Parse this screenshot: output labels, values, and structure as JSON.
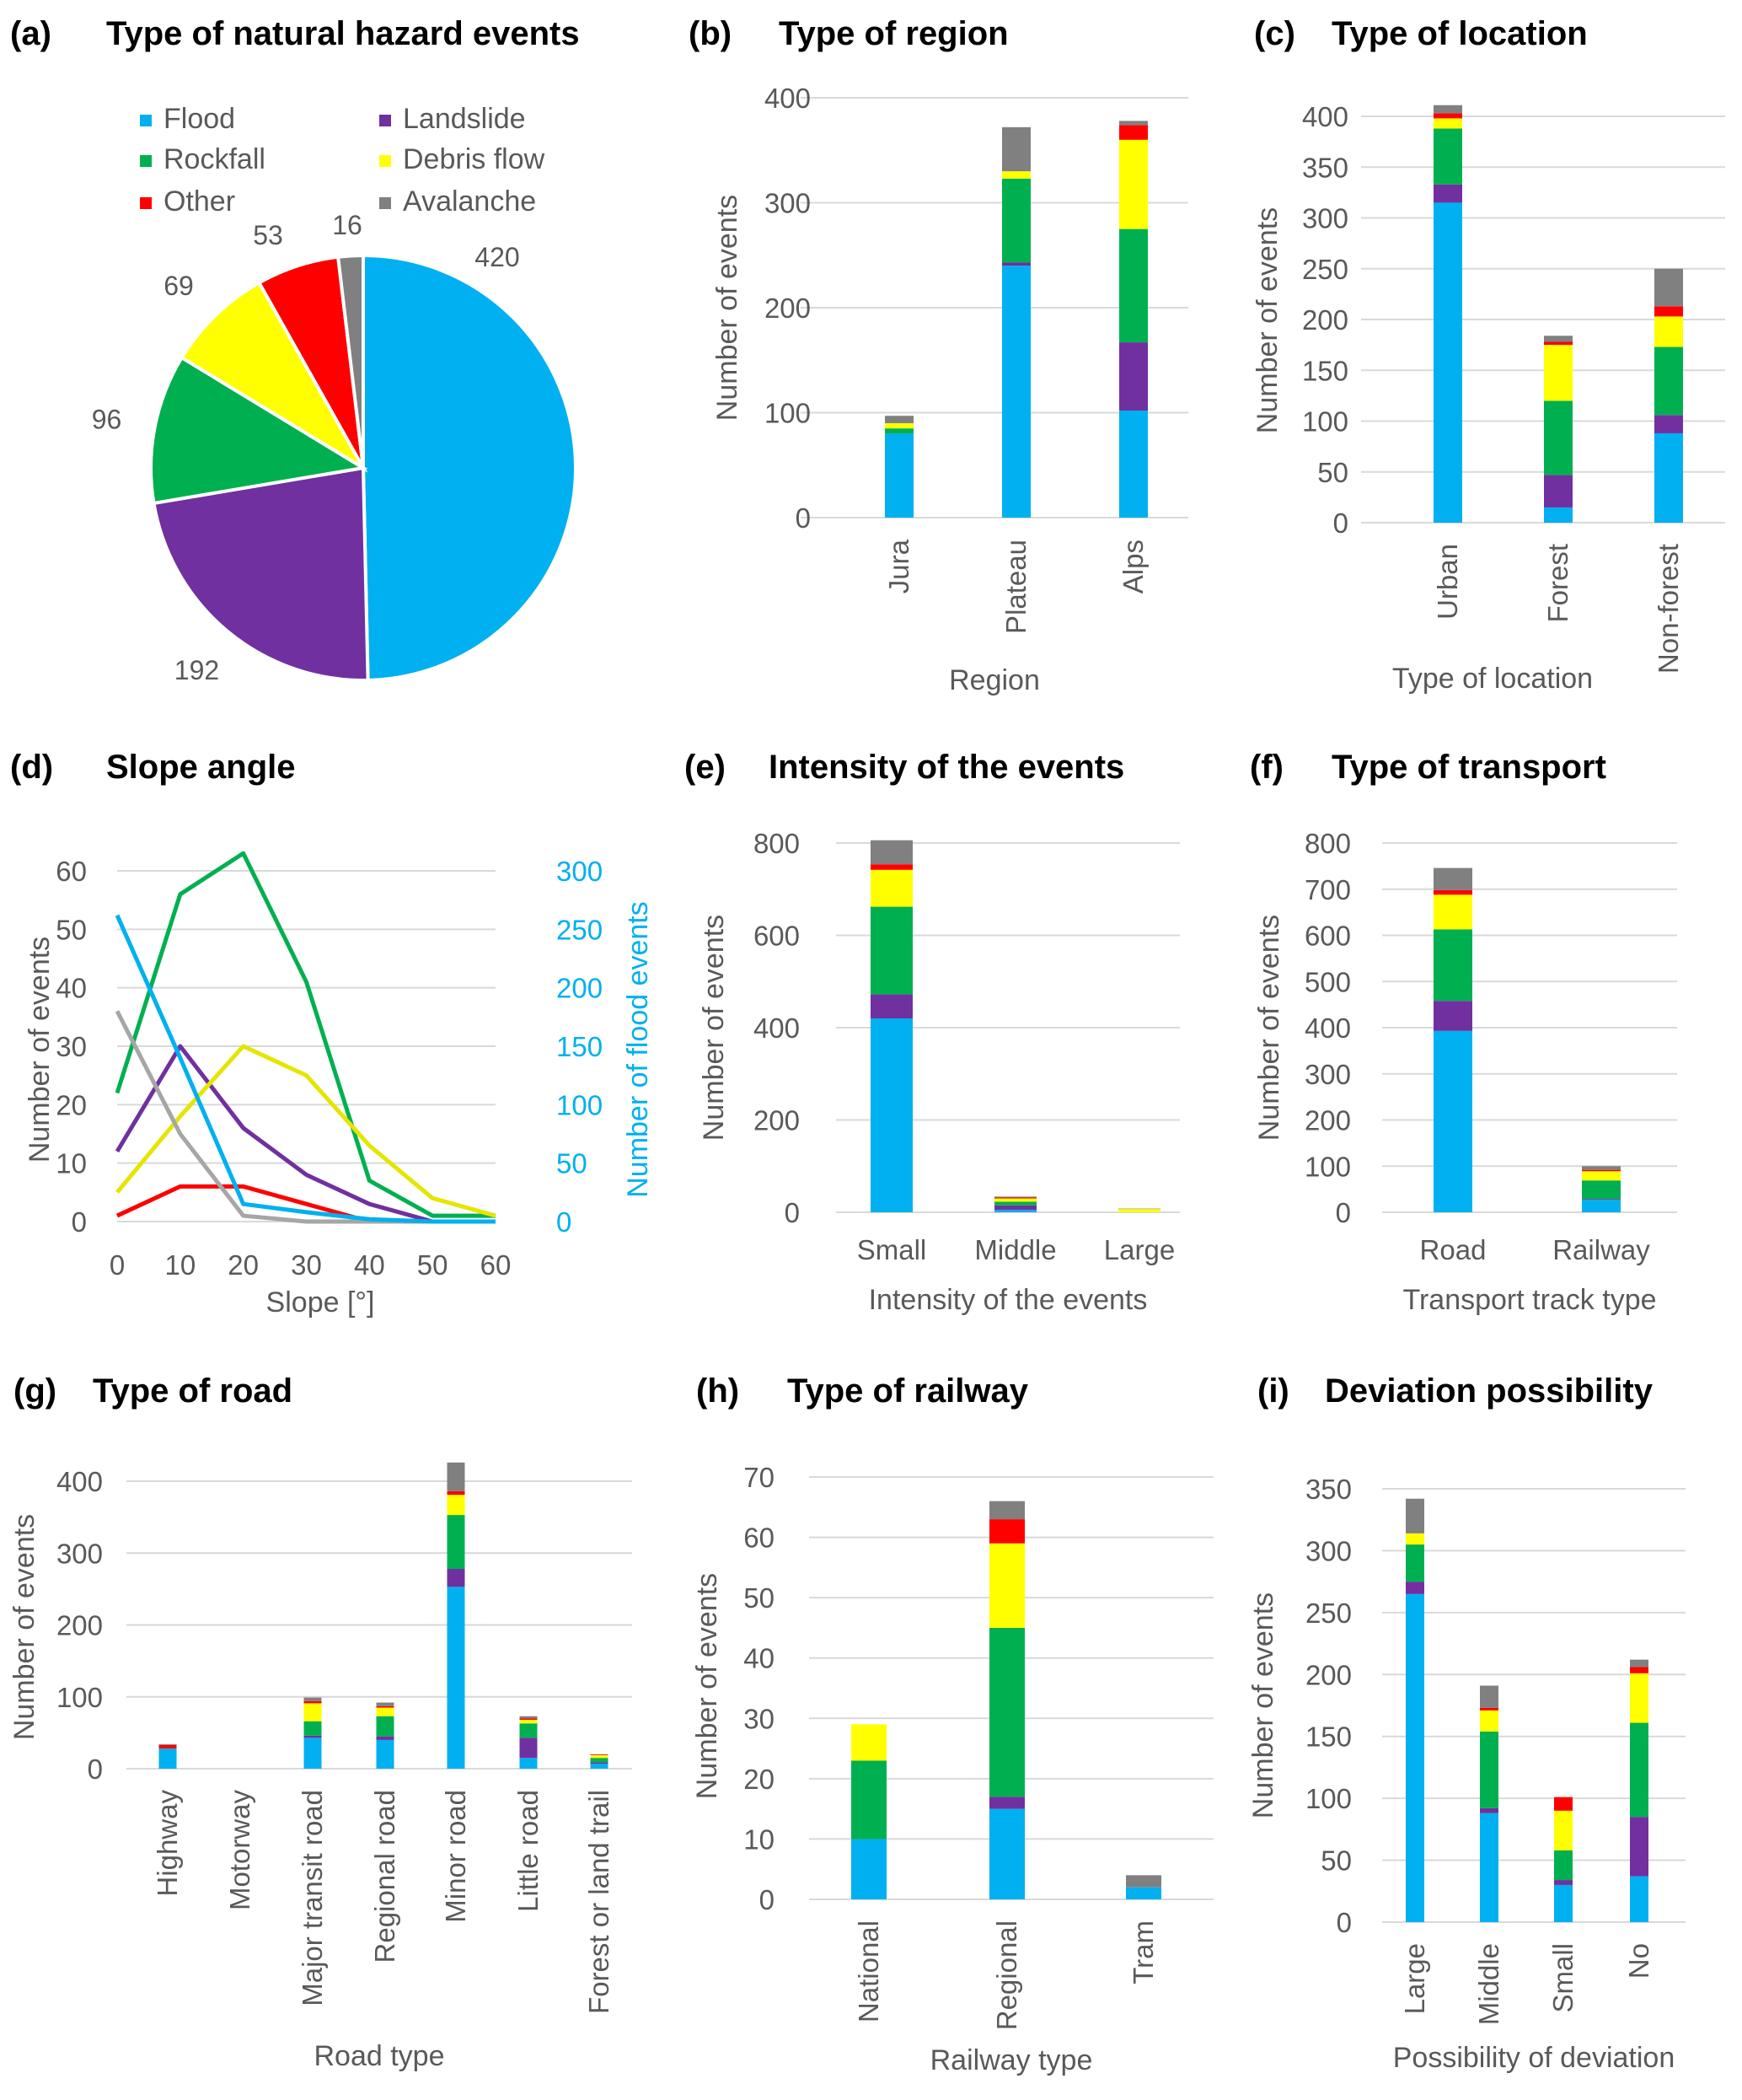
{
  "colors": {
    "flood": "#00b0f0",
    "landslide": "#7030a0",
    "rockfall": "#00b050",
    "debris": "#ffff00",
    "other": "#ff0000",
    "avalanche": "#808080",
    "debris_line": "#e5e500",
    "avalanche_line": "#a6a6a6",
    "grid": "#d9d9d9",
    "text": "#595959",
    "flood_axis": "#00b0f0"
  },
  "legend": [
    {
      "key": "flood",
      "label": "Flood"
    },
    {
      "key": "landslide",
      "label": "Landslide"
    },
    {
      "key": "rockfall",
      "label": "Rockfall"
    },
    {
      "key": "debris",
      "label": "Debris flow"
    },
    {
      "key": "other",
      "label": "Other"
    },
    {
      "key": "avalanche",
      "label": "Avalanche"
    }
  ],
  "panels": {
    "a": {
      "tag": "(a)",
      "title": "Type of natural hazard events"
    },
    "b": {
      "tag": "(b)",
      "title": "Type of region"
    },
    "c": {
      "tag": "(c)",
      "title": "Type of location"
    },
    "d": {
      "tag": "(d)",
      "title": "Slope angle"
    },
    "e": {
      "tag": "(e)",
      "title": "Intensity of the events"
    },
    "f": {
      "tag": "(f)",
      "title": "Type of transport"
    },
    "g": {
      "tag": "(g)",
      "title": "Type of road"
    },
    "h": {
      "tag": "(h)",
      "title": "Type of railway"
    },
    "i": {
      "tag": "(i)",
      "title": "Deviation possibility"
    }
  },
  "chart_data": [
    {
      "id": "a",
      "type": "pie",
      "title": "Type of natural hazard events",
      "slices": [
        {
          "key": "flood",
          "label": "Flood",
          "value": 420
        },
        {
          "key": "landslide",
          "label": "Landslide",
          "value": 192
        },
        {
          "key": "rockfall",
          "label": "Rockfall",
          "value": 96
        },
        {
          "key": "debris",
          "label": "Debris flow",
          "value": 69
        },
        {
          "key": "other",
          "label": "Other",
          "value": 53
        },
        {
          "key": "avalanche",
          "label": "Avalanche",
          "value": 16
        }
      ]
    },
    {
      "id": "b",
      "type": "bar",
      "stacked": true,
      "title": "Type of region",
      "xlabel": "Region",
      "ylabel": "Number of events",
      "ylim": [
        0,
        400
      ],
      "yticks": [
        0,
        100,
        200,
        300,
        400
      ],
      "categories": [
        "Jura",
        "Plateau",
        "Alps"
      ],
      "series": [
        {
          "key": "flood",
          "name": "Flood",
          "values": [
            80,
            240,
            102
          ]
        },
        {
          "key": "landslide",
          "name": "Landslide",
          "values": [
            0,
            3,
            65
          ]
        },
        {
          "key": "rockfall",
          "name": "Rockfall",
          "values": [
            5,
            80,
            108
          ]
        },
        {
          "key": "debris",
          "name": "Debris flow",
          "values": [
            5,
            7,
            85
          ]
        },
        {
          "key": "other",
          "name": "Other",
          "values": [
            0,
            0,
            14
          ]
        },
        {
          "key": "avalanche",
          "name": "Avalanche",
          "values": [
            7,
            42,
            4
          ]
        }
      ]
    },
    {
      "id": "c",
      "type": "bar",
      "stacked": true,
      "title": "Type of location",
      "xlabel": "Type of location",
      "ylabel": "Number of events",
      "ylim": [
        0,
        400
      ],
      "yticks": [
        0,
        50,
        100,
        150,
        200,
        250,
        300,
        350,
        400
      ],
      "categories": [
        "Urban",
        "Forest",
        "Non-forest"
      ],
      "series": [
        {
          "key": "flood",
          "name": "Flood",
          "values": [
            315,
            15,
            88
          ]
        },
        {
          "key": "landslide",
          "name": "Landslide",
          "values": [
            18,
            32,
            18
          ]
        },
        {
          "key": "rockfall",
          "name": "Rockfall",
          "values": [
            55,
            73,
            67
          ]
        },
        {
          "key": "debris",
          "name": "Debris flow",
          "values": [
            10,
            55,
            30
          ]
        },
        {
          "key": "other",
          "name": "Other",
          "values": [
            5,
            3,
            10
          ]
        },
        {
          "key": "avalanche",
          "name": "Avalanche",
          "values": [
            8,
            6,
            37
          ]
        }
      ]
    },
    {
      "id": "d",
      "type": "line",
      "title": "Slope angle",
      "xlabel": "Slope [°]",
      "ylabel": "Number of events",
      "y2label": "Number of flood events",
      "x": [
        0,
        10,
        20,
        30,
        40,
        50,
        60
      ],
      "ylim": [
        0,
        60
      ],
      "yticks": [
        0,
        10,
        20,
        30,
        40,
        50,
        60
      ],
      "y2lim": [
        0,
        300
      ],
      "y2ticks": [
        0,
        50,
        100,
        150,
        200,
        250,
        300
      ],
      "series": [
        {
          "key": "rockfall",
          "name": "Rockfall",
          "axis": "left",
          "values": [
            22,
            56,
            63,
            41,
            7,
            1,
            1
          ]
        },
        {
          "key": "landslide",
          "name": "Landslide",
          "axis": "left",
          "values": [
            12,
            30,
            16,
            8,
            3,
            0,
            0
          ]
        },
        {
          "key": "debris",
          "name": "Debris flow",
          "axis": "left",
          "values": [
            5,
            18,
            30,
            25,
            13,
            4,
            1
          ]
        },
        {
          "key": "other",
          "name": "Other",
          "axis": "left",
          "values": [
            1,
            6,
            6,
            3,
            0,
            0,
            0
          ]
        },
        {
          "key": "avalanche",
          "name": "Avalanche",
          "axis": "left",
          "values": [
            36,
            15,
            1,
            0,
            0,
            0,
            0
          ]
        },
        {
          "key": "flood",
          "name": "Flood",
          "axis": "right",
          "values": [
            262,
            140,
            15,
            8,
            2,
            0,
            0
          ]
        }
      ]
    },
    {
      "id": "e",
      "type": "bar",
      "stacked": true,
      "title": "Intensity of the events",
      "xlabel": "Intensity of the events",
      "ylabel": "Number of events",
      "ylim": [
        0,
        800
      ],
      "yticks": [
        0,
        200,
        400,
        600,
        800
      ],
      "categories": [
        "Small",
        "Middle",
        "Large"
      ],
      "series": [
        {
          "key": "flood",
          "name": "Flood",
          "values": [
            420,
            5,
            0
          ]
        },
        {
          "key": "landslide",
          "name": "Landslide",
          "values": [
            52,
            10,
            0
          ]
        },
        {
          "key": "rockfall",
          "name": "Rockfall",
          "values": [
            190,
            8,
            0
          ]
        },
        {
          "key": "debris",
          "name": "Debris flow",
          "values": [
            80,
            7,
            7
          ]
        },
        {
          "key": "other",
          "name": "Other",
          "values": [
            12,
            2,
            0
          ]
        },
        {
          "key": "avalanche",
          "name": "Avalanche",
          "values": [
            52,
            2,
            1
          ]
        }
      ]
    },
    {
      "id": "f",
      "type": "bar",
      "stacked": true,
      "title": "Type of transport",
      "xlabel": "Transport track type",
      "ylabel": "Number of events",
      "ylim": [
        0,
        800
      ],
      "yticks": [
        0,
        100,
        200,
        300,
        400,
        500,
        600,
        700,
        800
      ],
      "categories": [
        "Road",
        "Railway"
      ],
      "series": [
        {
          "key": "flood",
          "name": "Flood",
          "values": [
            393,
            27
          ]
        },
        {
          "key": "landslide",
          "name": "Landslide",
          "values": [
            65,
            2
          ]
        },
        {
          "key": "rockfall",
          "name": "Rockfall",
          "values": [
            155,
            40
          ]
        },
        {
          "key": "debris",
          "name": "Debris flow",
          "values": [
            75,
            20
          ]
        },
        {
          "key": "other",
          "name": "Other",
          "values": [
            10,
            3
          ]
        },
        {
          "key": "avalanche",
          "name": "Avalanche",
          "values": [
            48,
            8
          ]
        }
      ]
    },
    {
      "id": "g",
      "type": "bar",
      "stacked": true,
      "title": "Type of road",
      "xlabel": "Road type",
      "ylabel": "Number of events",
      "ylim": [
        0,
        400
      ],
      "yticks": [
        0,
        100,
        200,
        300,
        400
      ],
      "categories": [
        "Highway",
        "Motorway",
        "Major transit road",
        "Regional road",
        "Minor road",
        "Little road",
        "Forest or land trail"
      ],
      "series": [
        {
          "key": "flood",
          "name": "Flood",
          "values": [
            28,
            0,
            43,
            40,
            253,
            15,
            7
          ]
        },
        {
          "key": "landslide",
          "name": "Landslide",
          "values": [
            0,
            0,
            3,
            5,
            25,
            28,
            2
          ]
        },
        {
          "key": "rockfall",
          "name": "Rockfall",
          "values": [
            0,
            0,
            20,
            28,
            75,
            20,
            6
          ]
        },
        {
          "key": "debris",
          "name": "Debris flow",
          "values": [
            0,
            0,
            25,
            12,
            28,
            5,
            4
          ]
        },
        {
          "key": "other",
          "name": "Other",
          "values": [
            5,
            0,
            3,
            2,
            5,
            2,
            1
          ]
        },
        {
          "key": "avalanche",
          "name": "Avalanche",
          "values": [
            1,
            0,
            5,
            5,
            40,
            3,
            0
          ]
        }
      ]
    },
    {
      "id": "h",
      "type": "bar",
      "stacked": true,
      "title": "Type of railway",
      "xlabel": "Railway type",
      "ylabel": "Number of events",
      "ylim": [
        0,
        70
      ],
      "yticks": [
        0,
        10,
        20,
        30,
        40,
        50,
        60,
        70
      ],
      "categories": [
        "National",
        "Regional",
        "Tram"
      ],
      "series": [
        {
          "key": "flood",
          "name": "Flood",
          "values": [
            10,
            15,
            2
          ]
        },
        {
          "key": "landslide",
          "name": "Landslide",
          "values": [
            0,
            2,
            0
          ]
        },
        {
          "key": "rockfall",
          "name": "Rockfall",
          "values": [
            13,
            28,
            0
          ]
        },
        {
          "key": "debris",
          "name": "Debris flow",
          "values": [
            6,
            14,
            0
          ]
        },
        {
          "key": "other",
          "name": "Other",
          "values": [
            0,
            4,
            0
          ]
        },
        {
          "key": "avalanche",
          "name": "Avalanche",
          "values": [
            0,
            3,
            2
          ]
        }
      ]
    },
    {
      "id": "i",
      "type": "bar",
      "stacked": true,
      "title": "Deviation possibility",
      "xlabel": "Possibility of deviation",
      "ylabel": "Number of events",
      "ylim": [
        0,
        350
      ],
      "yticks": [
        0,
        50,
        100,
        150,
        200,
        250,
        300,
        350
      ],
      "categories": [
        "Large",
        "Middle",
        "Small",
        "No"
      ],
      "series": [
        {
          "key": "flood",
          "name": "Flood",
          "values": [
            265,
            88,
            30,
            37
          ]
        },
        {
          "key": "landslide",
          "name": "Landslide",
          "values": [
            10,
            4,
            4,
            48
          ]
        },
        {
          "key": "rockfall",
          "name": "Rockfall",
          "values": [
            30,
            62,
            24,
            76
          ]
        },
        {
          "key": "debris",
          "name": "Debris flow",
          "values": [
            9,
            17,
            32,
            40
          ]
        },
        {
          "key": "other",
          "name": "Other",
          "values": [
            0,
            2,
            11,
            5
          ]
        },
        {
          "key": "avalanche",
          "name": "Avalanche",
          "values": [
            28,
            18,
            0,
            6
          ]
        }
      ]
    }
  ]
}
